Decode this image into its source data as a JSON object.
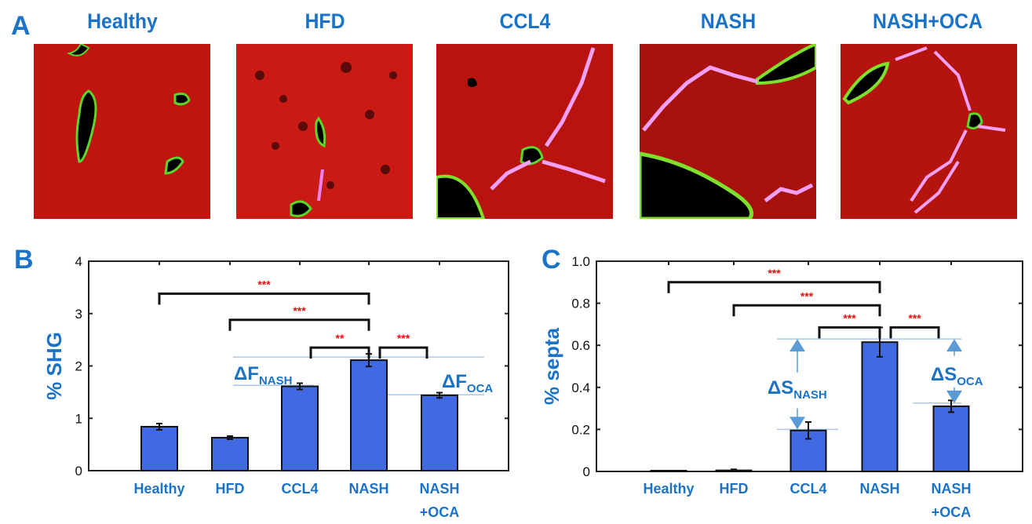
{
  "panels": {
    "A": {
      "letter": "A",
      "images": [
        {
          "title": "Healthy"
        },
        {
          "title": "HFD"
        },
        {
          "title": "CCL4"
        },
        {
          "title": "NASH"
        },
        {
          "title": "NASH+OCA"
        }
      ]
    },
    "B": {
      "letter": "B"
    },
    "C": {
      "letter": "C"
    }
  },
  "colors": {
    "title": "#1a73c7",
    "bar": "#4169e1",
    "star": "#e31010",
    "refline": "#a9c8ea",
    "arrow": "#5b9bd5"
  },
  "chart_data": [
    {
      "type": "bar",
      "panel": "B",
      "ylabel": "% SHG",
      "categories": [
        "Healthy",
        "HFD",
        "CCL4",
        "NASH",
        "NASH +OCA"
      ],
      "category_lines": [
        [
          "Healthy"
        ],
        [
          "HFD"
        ],
        [
          "CCL4"
        ],
        [
          "NASH"
        ],
        [
          "NASH",
          "+OCA"
        ]
      ],
      "values": [
        0.84,
        0.63,
        1.61,
        2.11,
        1.44
      ],
      "errors": [
        0.06,
        0.03,
        0.06,
        0.12,
        0.05
      ],
      "ylim": [
        0,
        4
      ],
      "yticks": [
        "0",
        "1",
        "2",
        "3",
        "4"
      ],
      "significance": [
        {
          "from": 0,
          "to": 3,
          "level": 3.38,
          "label": "***"
        },
        {
          "from": 1,
          "to": 3,
          "level": 2.88,
          "label": "***"
        },
        {
          "from": 2,
          "to": 3,
          "level": 2.35,
          "label": "**"
        },
        {
          "from": 3,
          "to": 4,
          "level": 2.35,
          "label": "***"
        }
      ],
      "reference_lines": [
        2.17,
        1.63,
        1.45
      ],
      "annotations": [
        {
          "main": "ΔF",
          "sub": "NASH"
        },
        {
          "main": "ΔF",
          "sub": "OCA"
        }
      ]
    },
    {
      "type": "bar",
      "panel": "C",
      "ylabel": "% septa",
      "categories": [
        "Healthy",
        "HFD",
        "CCL4",
        "NASH",
        "NASH +OCA"
      ],
      "category_lines": [
        [
          "Healthy"
        ],
        [
          "HFD"
        ],
        [
          "CCL4"
        ],
        [
          "NASH"
        ],
        [
          "NASH",
          "+OCA"
        ]
      ],
      "values": [
        0.0,
        0.005,
        0.195,
        0.615,
        0.31
      ],
      "errors": [
        0,
        0.005,
        0.04,
        0.07,
        0.028
      ],
      "ylim": [
        0,
        1.0
      ],
      "yticks": [
        "0",
        "0.2",
        "0.4",
        "0.6",
        "0.8",
        "1.0"
      ],
      "significance": [
        {
          "from": 0,
          "to": 3,
          "level": 0.9,
          "label": "***"
        },
        {
          "from": 1,
          "to": 3,
          "level": 0.79,
          "label": "***"
        },
        {
          "from": 2,
          "to": 3,
          "level": 0.685,
          "label": "***"
        },
        {
          "from": 3,
          "to": 4,
          "level": 0.685,
          "label": "***"
        }
      ],
      "reference_lines": [
        0.63,
        0.2,
        0.325
      ],
      "annotations": [
        {
          "main": "ΔS",
          "sub": "NASH"
        },
        {
          "main": "ΔS",
          "sub": "OCA"
        }
      ]
    }
  ]
}
